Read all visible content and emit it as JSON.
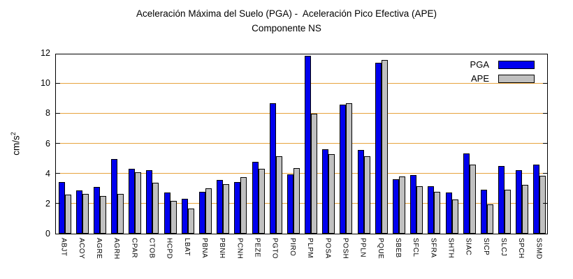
{
  "title": {
    "line1": "Aceleración Máxima del Suelo (PGA) -  Aceleración Pico Efectiva (APE)",
    "line2": "Componente NS"
  },
  "y_axis": {
    "label_base": "cm/s",
    "label_sup": "2",
    "ticks": [
      0,
      2,
      4,
      6,
      8,
      10,
      12
    ]
  },
  "legend": {
    "items": [
      {
        "label": "PGA",
        "color": "#0000EE"
      },
      {
        "label": "APE",
        "color": "#C0C0C0"
      }
    ]
  },
  "colors": {
    "pga_bar": "#0000EE",
    "ape_bar": "#C0C0C0",
    "grid": "#E7A33D",
    "frame": "#000000",
    "background": "#FFFFFF"
  },
  "chart_data": {
    "type": "bar",
    "title": "Aceleración Máxima del Suelo (PGA) -  Aceleración Pico Efectiva (APE)",
    "subtitle": "Componente NS",
    "ylabel": "cm/s²",
    "xlabel": "",
    "ylim": [
      0,
      12
    ],
    "ytick_step": 2,
    "grid_values": [
      2,
      4,
      6,
      8,
      10
    ],
    "grid": "horizontal-only",
    "legend_position": "top-right-inside",
    "categories": [
      "ABJT",
      "ACOY",
      "AGRE",
      "AGRH",
      "CPAR",
      "CTOB",
      "HCPD",
      "LBAT",
      "PBNA",
      "PBNH",
      "PCNH",
      "PEZE",
      "PGTO",
      "PIRO",
      "PLPM",
      "POSA",
      "POSH",
      "PPLN",
      "PQUE",
      "SBEB",
      "SFCL",
      "SFRA",
      "SHTH",
      "SIAC",
      "SICP",
      "SLCJ",
      "SPCH",
      "SSMD"
    ],
    "series": [
      {
        "name": "PGA",
        "color": "#0000EE",
        "values": [
          3.45,
          2.85,
          3.1,
          4.95,
          4.3,
          4.2,
          2.75,
          2.3,
          2.8,
          3.55,
          3.45,
          4.75,
          8.65,
          3.95,
          11.8,
          5.6,
          8.55,
          5.55,
          11.35,
          3.6,
          3.9,
          3.15,
          2.75,
          5.35,
          2.9,
          4.5,
          4.2,
          4.6
        ]
      },
      {
        "name": "APE",
        "color": "#C0C0C0",
        "values": [
          2.6,
          2.65,
          2.5,
          2.65,
          4.1,
          3.4,
          2.2,
          1.65,
          3.0,
          3.3,
          3.75,
          4.3,
          5.15,
          4.35,
          7.95,
          5.3,
          8.65,
          5.15,
          11.55,
          3.8,
          3.15,
          2.8,
          2.25,
          4.6,
          1.95,
          2.9,
          3.25,
          3.85
        ]
      }
    ]
  }
}
